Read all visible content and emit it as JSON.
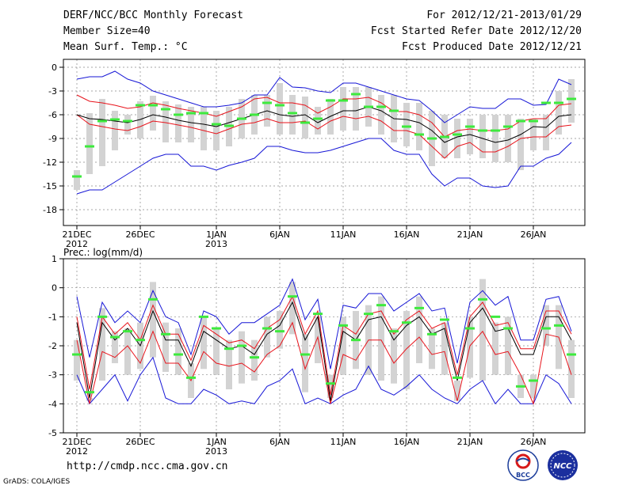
{
  "header": {
    "title": "DERF/NCC/BCC Monthly Forecast",
    "member_size": "Member Size=40",
    "variable": "Mean Surf. Temp.: °C",
    "period": "For 2012/12/21-2013/01/29",
    "start_date": "Fcst Started Refer Date 2012/12/20",
    "produced_date": "Fcst Produced Date 2012/12/21"
  },
  "footer": {
    "url": "http://cmdp.ncc.cma.gov.cn",
    "credit": "GrADS: COLA/IGES"
  },
  "logos": {
    "bcc": "BCC",
    "ncc": "NCC"
  },
  "colors": {
    "box": "#d3d3d3",
    "median": "#000000",
    "inner_band": "#e8131b",
    "outer_band": "#1616d6",
    "observed": "#3dea3d",
    "grid": "#888888"
  },
  "chart_data": [
    {
      "type": "line",
      "name": "temperature",
      "ylabel": "Mean Surf. Temp.: °C",
      "ylim": [
        -20,
        1
      ],
      "yticks": [
        0,
        -3,
        -6,
        -9,
        -12,
        -15,
        -18
      ],
      "ytick_labels": [
        "0",
        "-3",
        "-6",
        "-9",
        "-12",
        "-15",
        "-18"
      ],
      "xlim": [
        1,
        40
      ],
      "x_day_index": [
        1,
        2,
        3,
        4,
        5,
        6,
        7,
        8,
        9,
        10,
        11,
        12,
        13,
        14,
        15,
        16,
        17,
        18,
        19,
        20,
        21,
        22,
        23,
        24,
        25,
        26,
        27,
        28,
        29,
        30,
        31,
        32,
        33,
        34,
        35,
        36,
        37,
        38,
        39,
        40
      ],
      "xticks": [
        1,
        6,
        12,
        17,
        22,
        27,
        32,
        37
      ],
      "xtick_labels": [
        "21DEC",
        "26DEC",
        "1JAN",
        "6JAN",
        "11JAN",
        "16JAN",
        "21JAN",
        "26JAN"
      ],
      "xtick_sublabels": [
        "2012",
        "",
        "2013",
        "",
        "",
        "",
        "",
        ""
      ],
      "series": [
        {
          "name": "median",
          "values": [
            -6.0,
            -6.5,
            -6.6,
            -6.8,
            -7.0,
            -6.6,
            -6.0,
            -6.3,
            -6.7,
            -7.0,
            -7.2,
            -7.5,
            -7.0,
            -6.5,
            -6.0,
            -5.5,
            -6.0,
            -6.2,
            -6.0,
            -7.0,
            -6.2,
            -5.5,
            -5.5,
            -5.0,
            -5.5,
            -6.5,
            -6.6,
            -7.0,
            -8.0,
            -9.5,
            -8.8,
            -8.5,
            -9.0,
            -9.5,
            -9.2,
            -8.5,
            -7.5,
            -7.6,
            -6.2,
            -6.0
          ]
        },
        {
          "name": "inner-upper",
          "values": [
            -3.5,
            -4.3,
            -4.5,
            -4.8,
            -5.2,
            -5.0,
            -4.5,
            -4.8,
            -5.2,
            -5.5,
            -5.8,
            -6.2,
            -5.6,
            -5.0,
            -4.0,
            -3.8,
            -4.5,
            -4.5,
            -4.8,
            -5.8,
            -5.0,
            -4.0,
            -4.0,
            -3.8,
            -4.5,
            -5.6,
            -5.6,
            -6.0,
            -7.0,
            -8.8,
            -8.0,
            -7.8,
            -8.0,
            -8.0,
            -7.8,
            -6.8,
            -6.5,
            -6.5,
            -4.8,
            -4.6
          ]
        },
        {
          "name": "inner-lower",
          "values": [
            -6.0,
            -7.2,
            -7.5,
            -7.8,
            -8.0,
            -7.5,
            -6.8,
            -7.0,
            -7.3,
            -7.6,
            -8.0,
            -8.4,
            -7.8,
            -7.2,
            -7.0,
            -6.5,
            -7.0,
            -7.0,
            -6.8,
            -7.8,
            -6.8,
            -6.2,
            -6.5,
            -6.2,
            -6.8,
            -8.0,
            -8.0,
            -8.5,
            -10.0,
            -11.5,
            -10.0,
            -9.5,
            -10.7,
            -10.7,
            -10.0,
            -9.0,
            -8.8,
            -8.8,
            -7.5,
            -7.3
          ]
        },
        {
          "name": "outer-upper",
          "values": [
            -1.5,
            -1.2,
            -1.2,
            -0.5,
            -1.5,
            -2.0,
            -3.0,
            -3.5,
            -4.0,
            -4.5,
            -5.0,
            -5.0,
            -4.8,
            -4.5,
            -3.5,
            -3.5,
            -1.3,
            -2.5,
            -2.6,
            -3.0,
            -3.2,
            -2.0,
            -2.0,
            -2.5,
            -3.0,
            -3.5,
            -4.0,
            -4.2,
            -5.5,
            -7.0,
            -6.0,
            -5.0,
            -5.2,
            -5.2,
            -4.0,
            -4.0,
            -4.8,
            -4.7,
            -1.5,
            -2.2
          ]
        },
        {
          "name": "outer-lower",
          "values": [
            -16.0,
            -15.5,
            -15.5,
            -14.5,
            -13.5,
            -12.5,
            -11.5,
            -11.0,
            -11.0,
            -12.5,
            -12.5,
            -13.0,
            -12.4,
            -12.0,
            -11.5,
            -10.0,
            -10.0,
            -10.5,
            -10.8,
            -10.8,
            -10.5,
            -10.0,
            -9.5,
            -9.0,
            -9.0,
            -10.5,
            -11.0,
            -11.0,
            -13.5,
            -15.0,
            -14.0,
            -14.0,
            -15.0,
            -15.2,
            -15.0,
            -12.5,
            -12.5,
            -11.5,
            -11.0,
            -9.5
          ]
        },
        {
          "name": "box-top",
          "values": [
            -13.0,
            -5.8,
            -4.0,
            -5.5,
            -6.0,
            -4.3,
            -3.6,
            -4.3,
            -4.7,
            -5.0,
            -5.0,
            -5.5,
            -5.0,
            -4.0,
            -3.5,
            -3.5,
            -2.0,
            -3.5,
            -3.7,
            -5.0,
            -4.0,
            -2.5,
            -2.5,
            -2.5,
            -3.5,
            -3.5,
            -4.5,
            -4.5,
            -5.5,
            -6.0,
            -6.5,
            -6.5,
            -6.0,
            -6.0,
            -6.0,
            -6.5,
            -6.5,
            -6.0,
            -3.0,
            -1.5
          ]
        },
        {
          "name": "box-bottom",
          "values": [
            -15.5,
            -13.5,
            -12.5,
            -10.5,
            -8.5,
            -9.0,
            -8.0,
            -9.5,
            -9.5,
            -9.5,
            -10.5,
            -10.5,
            -10.0,
            -9.0,
            -8.5,
            -7.5,
            -8.5,
            -8.5,
            -9.0,
            -8.5,
            -8.5,
            -8.0,
            -8.0,
            -7.5,
            -8.5,
            -9.5,
            -10.0,
            -10.5,
            -12.5,
            -11.5,
            -11.5,
            -11.0,
            -11.5,
            -12.0,
            -12.0,
            -13.0,
            -10.5,
            -10.5,
            -8.5,
            -7.0
          ]
        },
        {
          "name": "observed",
          "values": [
            -13.8,
            -10.0,
            -6.8,
            -6.6,
            -6.8,
            -4.8,
            -4.8,
            -5.3,
            -6.0,
            -5.8,
            -5.8,
            -7.2,
            -7.4,
            -6.5,
            -6.0,
            -4.5,
            -4.8,
            -5.8,
            -7.0,
            -6.5,
            -4.2,
            -4.2,
            -3.4,
            -5.0,
            -5.0,
            -5.5,
            -7.5,
            -8.5,
            -9.0,
            -8.8,
            -8.5,
            -7.5,
            -8.0,
            -8.0,
            -7.5,
            -6.8,
            -6.8,
            -4.5,
            -4.5,
            -4.0
          ]
        }
      ]
    },
    {
      "type": "line",
      "name": "precipitation",
      "ylabel": "Prec.: log(mm/d)",
      "ylim": [
        -5,
        1
      ],
      "yticks": [
        1,
        0,
        -1,
        -2,
        -3,
        -4,
        -5
      ],
      "ytick_labels": [
        "1",
        "0",
        "-1",
        "-2",
        "-3",
        "-4",
        "-5"
      ],
      "xlim": [
        1,
        40
      ],
      "x_day_index": [
        1,
        2,
        3,
        4,
        5,
        6,
        7,
        8,
        9,
        10,
        11,
        12,
        13,
        14,
        15,
        16,
        17,
        18,
        19,
        20,
        21,
        22,
        23,
        24,
        25,
        26,
        27,
        28,
        29,
        30,
        31,
        32,
        33,
        34,
        35,
        36,
        37,
        38,
        39,
        40
      ],
      "xticks": [
        1,
        6,
        12,
        17,
        22,
        27,
        32,
        37
      ],
      "xtick_labels": [
        "21DEC",
        "26DEC",
        "1JAN",
        "6JAN",
        "11JAN",
        "16JAN",
        "21JAN",
        "26JAN"
      ],
      "xtick_sublabels": [
        "2012",
        "",
        "2013",
        "",
        "",
        "",
        "",
        ""
      ],
      "series": [
        {
          "name": "median",
          "values": [
            -1.2,
            -3.8,
            -1.2,
            -1.8,
            -1.4,
            -2.0,
            -0.8,
            -1.8,
            -1.8,
            -2.7,
            -1.5,
            -1.8,
            -2.1,
            -2.0,
            -2.3,
            -1.6,
            -1.3,
            -0.5,
            -1.8,
            -1.0,
            -3.9,
            -1.5,
            -1.8,
            -1.1,
            -1.0,
            -1.8,
            -1.3,
            -1.0,
            -1.6,
            -1.4,
            -3.2,
            -1.2,
            -0.7,
            -1.5,
            -1.4,
            -2.3,
            -2.3,
            -1.0,
            -1.0,
            -1.8
          ]
        },
        {
          "name": "inner-upper",
          "values": [
            -1.0,
            -3.5,
            -1.0,
            -1.6,
            -1.2,
            -1.8,
            -0.6,
            -1.6,
            -1.6,
            -2.5,
            -1.3,
            -1.6,
            -1.9,
            -1.8,
            -2.1,
            -1.4,
            -1.1,
            -0.3,
            -1.6,
            -0.8,
            -3.7,
            -1.3,
            -1.6,
            -0.9,
            -0.8,
            -1.6,
            -1.1,
            -0.8,
            -1.4,
            -1.2,
            -3.0,
            -1.0,
            -0.5,
            -1.3,
            -1.2,
            -2.1,
            -2.1,
            -0.8,
            -0.8,
            -1.6
          ]
        },
        {
          "name": "inner-lower",
          "values": [
            -1.8,
            -4.0,
            -2.2,
            -2.4,
            -2.0,
            -2.6,
            -1.5,
            -2.6,
            -2.6,
            -3.2,
            -2.2,
            -2.6,
            -2.7,
            -2.6,
            -2.9,
            -2.3,
            -2.0,
            -1.2,
            -2.8,
            -1.7,
            -4.0,
            -2.3,
            -2.5,
            -1.8,
            -1.8,
            -2.6,
            -2.1,
            -1.7,
            -2.3,
            -2.2,
            -3.9,
            -2.0,
            -1.5,
            -2.3,
            -2.2,
            -3.0,
            -4.0,
            -1.6,
            -1.7,
            -3.0
          ]
        },
        {
          "name": "outer-upper",
          "values": [
            -0.3,
            -2.4,
            -0.5,
            -1.2,
            -0.8,
            -1.2,
            -0.1,
            -1.0,
            -1.2,
            -2.3,
            -0.8,
            -1.0,
            -1.6,
            -1.2,
            -1.2,
            -0.9,
            -0.6,
            0.3,
            -1.1,
            -0.4,
            -2.8,
            -0.6,
            -0.7,
            -0.2,
            -0.2,
            -0.8,
            -0.5,
            -0.2,
            -0.8,
            -0.7,
            -2.6,
            -0.5,
            -0.1,
            -0.6,
            -0.3,
            -1.8,
            -1.8,
            -0.4,
            -0.3,
            -1.5
          ]
        },
        {
          "name": "outer-lower",
          "values": [
            -3.0,
            -4.0,
            -3.5,
            -3.0,
            -3.9,
            -3.0,
            -2.4,
            -3.8,
            -4.0,
            -4.0,
            -3.5,
            -3.7,
            -4.0,
            -3.9,
            -4.0,
            -3.4,
            -3.2,
            -2.8,
            -4.0,
            -3.8,
            -4.0,
            -3.7,
            -3.5,
            -2.7,
            -3.5,
            -3.7,
            -3.4,
            -3.0,
            -3.5,
            -3.8,
            -4.0,
            -3.5,
            -3.2,
            -4.0,
            -3.5,
            -4.0,
            -4.0,
            -3.0,
            -3.3,
            -4.0
          ]
        },
        {
          "name": "box-top",
          "values": [
            -1.8,
            -3.8,
            -0.7,
            -1.5,
            -1.4,
            -1.2,
            0.2,
            -1.2,
            -1.4,
            -2.6,
            -1.0,
            -1.4,
            -1.8,
            -1.5,
            -1.8,
            -1.0,
            -0.8,
            0.2,
            -1.6,
            -1.0,
            -3.0,
            -1.0,
            -0.8,
            -0.6,
            -0.3,
            -1.4,
            -0.8,
            -0.3,
            -1.4,
            -1.2,
            -3.2,
            -1.0,
            0.3,
            -1.2,
            -1.0,
            -3.0,
            -3.0,
            -0.6,
            -0.6,
            -1.8
          ]
        },
        {
          "name": "box-bottom",
          "values": [
            -3.2,
            -3.9,
            -3.2,
            -2.6,
            -3.0,
            -2.8,
            -2.4,
            -2.9,
            -3.0,
            -3.8,
            -2.8,
            -3.0,
            -3.5,
            -3.3,
            -3.2,
            -2.4,
            -2.1,
            -1.6,
            -3.6,
            -2.6,
            -3.8,
            -3.0,
            -2.8,
            -3.0,
            -3.2,
            -3.3,
            -3.5,
            -2.6,
            -2.8,
            -3.0,
            -3.9,
            -3.1,
            -3.2,
            -3.0,
            -3.0,
            -3.8,
            -3.8,
            -2.0,
            -2.8,
            -3.8
          ]
        },
        {
          "name": "observed",
          "values": [
            -2.3,
            -3.6,
            -1.0,
            -1.7,
            -1.5,
            -1.8,
            -0.4,
            -1.6,
            -2.3,
            -3.1,
            -1.0,
            -1.4,
            -2.1,
            -2.0,
            -2.4,
            -1.4,
            -1.5,
            -0.3,
            -2.3,
            -0.9,
            -3.3,
            -1.3,
            -1.8,
            -0.9,
            -0.6,
            -1.5,
            -1.2,
            -0.7,
            -1.6,
            -1.1,
            -3.1,
            -1.4,
            -0.4,
            -1.0,
            -1.4,
            -3.4,
            -3.2,
            -1.4,
            -1.3,
            -2.3
          ]
        }
      ]
    }
  ]
}
